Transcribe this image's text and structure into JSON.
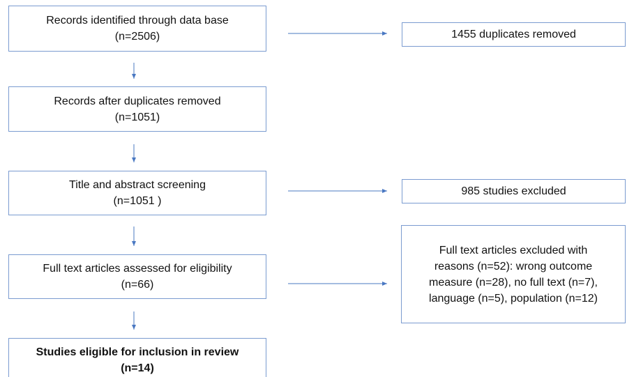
{
  "nodes": [
    {
      "lines": [
        "Records identified through data base",
        "(n=2506)"
      ]
    },
    {
      "lines": [
        "1455  duplicates removed"
      ]
    },
    {
      "lines": [
        "Records after duplicates removed",
        "(n=1051)"
      ]
    },
    {
      "lines": [
        "Title and abstract screening",
        "(n=1051 )"
      ]
    },
    {
      "lines": [
        "985  studies excluded"
      ]
    },
    {
      "lines": [
        "Full text articles assessed for eligibility",
        "(n=66)"
      ]
    },
    {
      "lines": [
        "Full text articles excluded with",
        "reasons (n=52): wrong outcome",
        "measure (n=28), no full text (n=7),",
        "language (n=5), population (n=12)"
      ]
    },
    {
      "lines": [
        "Studies eligible for inclusion in review",
        "(n=14)"
      ]
    }
  ]
}
